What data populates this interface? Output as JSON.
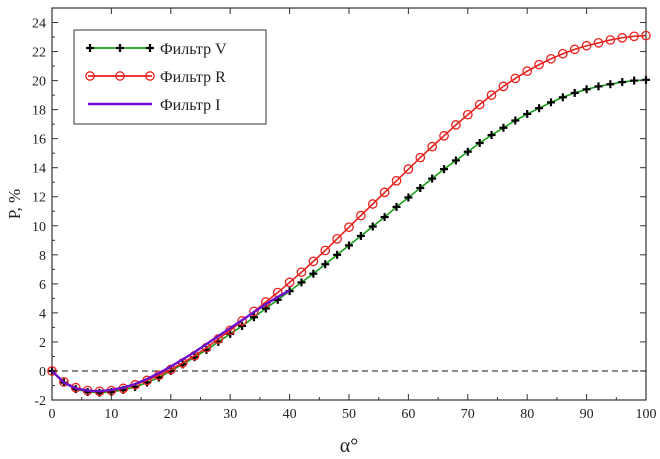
{
  "chart_data": {
    "type": "line",
    "xlabel": "α°",
    "ylabel": "P, %",
    "xlim": [
      0,
      100
    ],
    "ylim": [
      -2,
      25
    ],
    "x_ticks": [
      0,
      10,
      20,
      30,
      40,
      50,
      60,
      70,
      80,
      90,
      100
    ],
    "y_ticks": [
      -2,
      0,
      2,
      4,
      6,
      8,
      10,
      12,
      14,
      16,
      18,
      20,
      22,
      24
    ],
    "x_tick_labels": [
      "0",
      "10",
      "20",
      "30",
      "40",
      "50",
      "60",
      "70",
      "80",
      "90",
      "100"
    ],
    "y_tick_labels": [
      "-2",
      "0",
      "2",
      "4",
      "6",
      "8",
      "10",
      "12",
      "14",
      "16",
      "18",
      "20",
      "22",
      "24"
    ],
    "grid": false,
    "legend_position": "top-left",
    "reference_line": {
      "y": 0,
      "style": "dashed",
      "color": "#444444"
    },
    "series": [
      {
        "name": "Фильтр V",
        "color": "#1a9e1a",
        "marker": "plus",
        "marker_color": "#000000",
        "x": [
          0,
          2,
          4,
          6,
          8,
          10,
          12,
          14,
          16,
          18,
          20,
          22,
          24,
          26,
          28,
          30,
          32,
          34,
          36,
          38,
          40,
          42,
          44,
          46,
          48,
          50,
          52,
          54,
          56,
          58,
          60,
          62,
          64,
          66,
          68,
          70,
          72,
          74,
          76,
          78,
          80,
          82,
          84,
          86,
          88,
          90,
          92,
          94,
          96,
          98,
          100
        ],
        "values": [
          0,
          -0.8,
          -1.25,
          -1.45,
          -1.5,
          -1.45,
          -1.3,
          -1.1,
          -0.8,
          -0.45,
          0,
          0.45,
          0.95,
          1.45,
          2.0,
          2.55,
          3.1,
          3.7,
          4.3,
          4.9,
          5.5,
          6.1,
          6.7,
          7.35,
          8.0,
          8.65,
          9.3,
          9.95,
          10.6,
          11.3,
          11.95,
          12.6,
          13.25,
          13.9,
          14.5,
          15.1,
          15.7,
          16.25,
          16.75,
          17.25,
          17.7,
          18.1,
          18.5,
          18.85,
          19.15,
          19.4,
          19.6,
          19.75,
          19.9,
          20.0,
          20.05
        ]
      },
      {
        "name": "Фильтр R",
        "color": "#e8231e",
        "marker": "circle",
        "marker_color": "#e8231e",
        "x": [
          0,
          2,
          4,
          6,
          8,
          10,
          12,
          14,
          16,
          18,
          20,
          22,
          24,
          26,
          28,
          30,
          32,
          34,
          36,
          38,
          40,
          42,
          44,
          46,
          48,
          50,
          52,
          54,
          56,
          58,
          60,
          62,
          64,
          66,
          68,
          70,
          72,
          74,
          76,
          78,
          80,
          82,
          84,
          86,
          88,
          90,
          92,
          94,
          96,
          98,
          100
        ],
        "values": [
          0,
          -0.75,
          -1.15,
          -1.35,
          -1.4,
          -1.35,
          -1.2,
          -0.95,
          -0.65,
          -0.3,
          0.1,
          0.55,
          1.05,
          1.6,
          2.2,
          2.8,
          3.45,
          4.1,
          4.75,
          5.4,
          6.1,
          6.8,
          7.55,
          8.3,
          9.1,
          9.9,
          10.7,
          11.5,
          12.3,
          13.1,
          13.9,
          14.7,
          15.45,
          16.2,
          16.95,
          17.65,
          18.35,
          19.0,
          19.6,
          20.15,
          20.65,
          21.1,
          21.5,
          21.85,
          22.15,
          22.4,
          22.6,
          22.8,
          22.95,
          23.05,
          23.1
        ]
      },
      {
        "name": "Фильтр I",
        "color": "#6a0dcc",
        "marker": "none",
        "x": [
          0,
          2,
          4,
          6,
          8,
          10,
          12,
          14,
          16,
          18,
          20,
          22,
          24,
          26,
          28,
          30,
          32,
          34,
          36,
          38,
          40
        ],
        "values": [
          0,
          -0.8,
          -1.2,
          -1.35,
          -1.4,
          -1.3,
          -1.15,
          -0.9,
          -0.55,
          -0.15,
          0.3,
          0.8,
          1.3,
          1.85,
          2.4,
          2.95,
          3.5,
          4.05,
          4.6,
          5.1,
          5.55
        ]
      }
    ]
  }
}
